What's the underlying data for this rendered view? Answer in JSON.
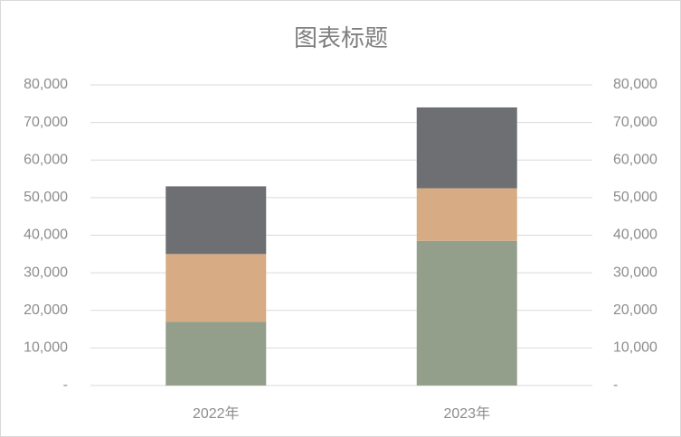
{
  "chart_data": {
    "type": "stacked_bar",
    "title": "图表标题",
    "categories": [
      "2022年",
      "2023年"
    ],
    "series": [
      {
        "color": "#939f8b",
        "values": [
          17000,
          38500
        ]
      },
      {
        "color": "#d7ab83",
        "values": [
          18000,
          14000
        ]
      },
      {
        "color": "#6d6f73",
        "values": [
          18000,
          21500
        ]
      }
    ],
    "ylim": [
      0,
      80000
    ],
    "yticks": [
      {
        "value": 0,
        "label": "-"
      },
      {
        "value": 10000,
        "label": "10,000"
      },
      {
        "value": 20000,
        "label": "20,000"
      },
      {
        "value": 30000,
        "label": "30,000"
      },
      {
        "value": 40000,
        "label": "40,000"
      },
      {
        "value": 50000,
        "label": "50,000"
      },
      {
        "value": 60000,
        "label": "60,000"
      },
      {
        "value": 70000,
        "label": "70,000"
      },
      {
        "value": 80000,
        "label": "80,000"
      }
    ],
    "y2lim": [
      0,
      80000
    ],
    "y2ticks": [
      {
        "value": 0,
        "label": "-"
      },
      {
        "value": 10000,
        "label": "10,000"
      },
      {
        "value": 20000,
        "label": "20,000"
      },
      {
        "value": 30000,
        "label": "30,000"
      },
      {
        "value": 40000,
        "label": "40,000"
      },
      {
        "value": 50000,
        "label": "50,000"
      },
      {
        "value": 60000,
        "label": "60,000"
      },
      {
        "value": 70000,
        "label": "70,000"
      },
      {
        "value": 80000,
        "label": "80,000"
      }
    ],
    "grid": true
  }
}
